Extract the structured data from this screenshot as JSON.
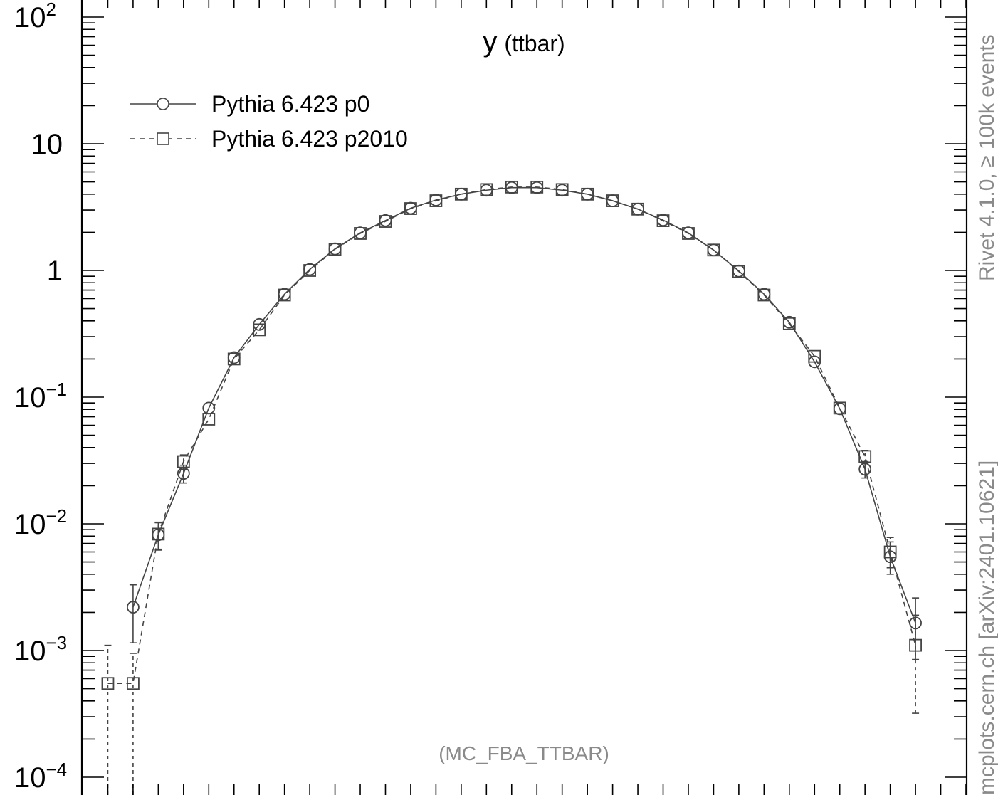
{
  "chart_data": {
    "type": "line",
    "title": "y",
    "title_suffix": "(ttbar)",
    "xlabel": "",
    "ylabel": "",
    "yscale": "log",
    "xlim": [
      -3.5,
      3.5
    ],
    "ylim": [
      0.0001,
      100
    ],
    "y_tick_labels": [
      {
        "value": 100,
        "base": "10",
        "exp": "2"
      },
      {
        "value": 10,
        "base": "10",
        "exp": ""
      },
      {
        "value": 1,
        "base": "1",
        "exp": ""
      },
      {
        "value": 0.1,
        "base": "10",
        "exp": "−1"
      },
      {
        "value": 0.01,
        "base": "10",
        "exp": "−2"
      },
      {
        "value": 0.001,
        "base": "10",
        "exp": "−3"
      },
      {
        "value": 0.0001,
        "base": "10",
        "exp": "−4"
      }
    ],
    "legend_position": "top-left",
    "grid": false,
    "series": [
      {
        "name": "Pythia 6.423 p0",
        "marker": "circle",
        "line": "solid",
        "color": "#444444",
        "points": [
          {
            "x": -3.1,
            "y": 0.0022,
            "lo": 0.00115,
            "hi": 0.0033
          },
          {
            "x": -2.9,
            "y": 0.0082,
            "lo": 0.0062,
            "hi": 0.0102
          },
          {
            "x": -2.7,
            "y": 0.025,
            "lo": 0.021,
            "hi": 0.029
          },
          {
            "x": -2.5,
            "y": 0.082
          },
          {
            "x": -2.3,
            "y": 0.205
          },
          {
            "x": -2.1,
            "y": 0.375
          },
          {
            "x": -1.9,
            "y": 0.65
          },
          {
            "x": -1.7,
            "y": 1.02
          },
          {
            "x": -1.5,
            "y": 1.48
          },
          {
            "x": -1.3,
            "y": 1.98
          },
          {
            "x": -1.1,
            "y": 2.48
          },
          {
            "x": -0.9,
            "y": 3.1
          },
          {
            "x": -0.7,
            "y": 3.6
          },
          {
            "x": -0.5,
            "y": 4.0
          },
          {
            "x": -0.3,
            "y": 4.3
          },
          {
            "x": -0.1,
            "y": 4.5
          },
          {
            "x": 0.1,
            "y": 4.5
          },
          {
            "x": 0.3,
            "y": 4.3
          },
          {
            "x": 0.5,
            "y": 4.0
          },
          {
            "x": 0.7,
            "y": 3.55
          },
          {
            "x": 0.9,
            "y": 3.05
          },
          {
            "x": 1.1,
            "y": 2.5
          },
          {
            "x": 1.3,
            "y": 1.98
          },
          {
            "x": 1.5,
            "y": 1.45
          },
          {
            "x": 1.7,
            "y": 0.99
          },
          {
            "x": 1.9,
            "y": 0.65
          },
          {
            "x": 2.1,
            "y": 0.39
          },
          {
            "x": 2.3,
            "y": 0.19
          },
          {
            "x": 2.5,
            "y": 0.081
          },
          {
            "x": 2.7,
            "y": 0.027,
            "lo": 0.023,
            "hi": 0.031
          },
          {
            "x": 2.9,
            "y": 0.0055,
            "lo": 0.004,
            "hi": 0.0072
          },
          {
            "x": 3.1,
            "y": 0.00165,
            "lo": 0.00085,
            "hi": 0.0026
          }
        ]
      },
      {
        "name": "Pythia 6.423 p2010",
        "marker": "square",
        "line": "dashed",
        "color": "#444444",
        "points": [
          {
            "x": -3.3,
            "y": 0.00055,
            "lo": 1e-05,
            "hi": 0.0011
          },
          {
            "x": -3.1,
            "y": 0.00055,
            "lo": 1e-05,
            "hi": 0.00095
          },
          {
            "x": -2.9,
            "y": 0.0083,
            "lo": 0.0063,
            "hi": 0.0103
          },
          {
            "x": -2.7,
            "y": 0.031,
            "lo": 0.027,
            "hi": 0.035
          },
          {
            "x": -2.5,
            "y": 0.067
          },
          {
            "x": -2.3,
            "y": 0.2
          },
          {
            "x": -2.1,
            "y": 0.34
          },
          {
            "x": -1.9,
            "y": 0.64
          },
          {
            "x": -1.7,
            "y": 1.0
          },
          {
            "x": -1.5,
            "y": 1.47
          },
          {
            "x": -1.3,
            "y": 1.96
          },
          {
            "x": -1.1,
            "y": 2.44
          },
          {
            "x": -0.9,
            "y": 3.08
          },
          {
            "x": -0.7,
            "y": 3.55
          },
          {
            "x": -0.5,
            "y": 4.0
          },
          {
            "x": -0.3,
            "y": 4.35
          },
          {
            "x": -0.1,
            "y": 4.55
          },
          {
            "x": 0.1,
            "y": 4.55
          },
          {
            "x": 0.3,
            "y": 4.35
          },
          {
            "x": 0.5,
            "y": 4.0
          },
          {
            "x": 0.7,
            "y": 3.55
          },
          {
            "x": 0.9,
            "y": 3.05
          },
          {
            "x": 1.1,
            "y": 2.47
          },
          {
            "x": 1.3,
            "y": 1.96
          },
          {
            "x": 1.5,
            "y": 1.45
          },
          {
            "x": 1.7,
            "y": 0.98
          },
          {
            "x": 1.9,
            "y": 0.64
          },
          {
            "x": 2.1,
            "y": 0.38
          },
          {
            "x": 2.3,
            "y": 0.21
          },
          {
            "x": 2.5,
            "y": 0.082
          },
          {
            "x": 2.7,
            "y": 0.034,
            "lo": 0.03,
            "hi": 0.038
          },
          {
            "x": 2.9,
            "y": 0.006,
            "lo": 0.0045,
            "hi": 0.0078
          },
          {
            "x": 3.1,
            "y": 0.0011,
            "lo": 0.00032,
            "hi": 0.0019
          }
        ]
      }
    ]
  },
  "footer_label": "(MC_FBA_TTBAR)",
  "side_label_top": "Rivet 4.1.0, ≥ 100k events",
  "side_label_bottom": "mcplots.cern.ch [arXiv:2401.10621]"
}
